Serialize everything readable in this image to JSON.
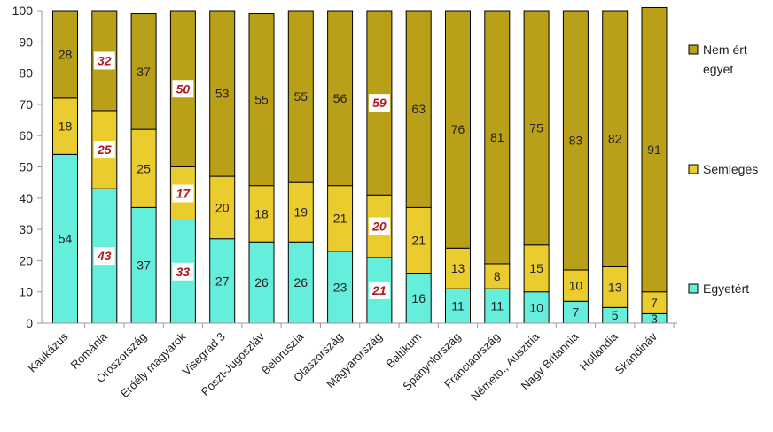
{
  "chart_data": {
    "type": "bar",
    "stacked": true,
    "categories": [
      "Kaukázus",
      "Románia",
      "Oroszország",
      "Erdély magyarok",
      "Visegrád 3",
      "Poszt-Jugoszláv",
      "Beloruszia",
      "Olaszország",
      "Magyarország",
      "Baltikum",
      "Spanyolország",
      "Franciaország",
      "Németo., Ausztria",
      "Nagy Britannia",
      "Hollandia",
      "Skandináv"
    ],
    "series": [
      {
        "name": "Egyetért",
        "color": "#66EEDD",
        "values": [
          54,
          43,
          37,
          33,
          27,
          26,
          26,
          23,
          21,
          16,
          11,
          11,
          10,
          7,
          5,
          3
        ]
      },
      {
        "name": "Semleges",
        "color": "#EBCC2F",
        "values": [
          18,
          25,
          25,
          17,
          20,
          18,
          19,
          21,
          20,
          21,
          13,
          8,
          15,
          10,
          13,
          7
        ]
      },
      {
        "name": "Nem ért egyet",
        "color": "#B9A018",
        "values": [
          28,
          32,
          37,
          50,
          53,
          55,
          55,
          56,
          59,
          63,
          76,
          81,
          75,
          83,
          82,
          91
        ]
      }
    ],
    "highlighted_categories": [
      "Románia",
      "Erdély magyarok",
      "Magyarország"
    ],
    "legend": {
      "position": "right",
      "entries": [
        {
          "name": "Nem ért egyet",
          "lines": [
            "Nem ért",
            "egyet"
          ],
          "color": "#B9A018"
        },
        {
          "name": "Semleges",
          "lines": [
            "Semleges"
          ],
          "color": "#EBCC2F"
        },
        {
          "name": "Egyetért",
          "lines": [
            "Egyetért"
          ],
          "color": "#66EEDD"
        }
      ]
    },
    "ylim": [
      0,
      100
    ],
    "yticks": [
      0,
      10,
      20,
      30,
      40,
      50,
      60,
      70,
      80,
      90,
      100
    ],
    "title": "",
    "xlabel": "",
    "ylabel": "",
    "grid": false
  }
}
